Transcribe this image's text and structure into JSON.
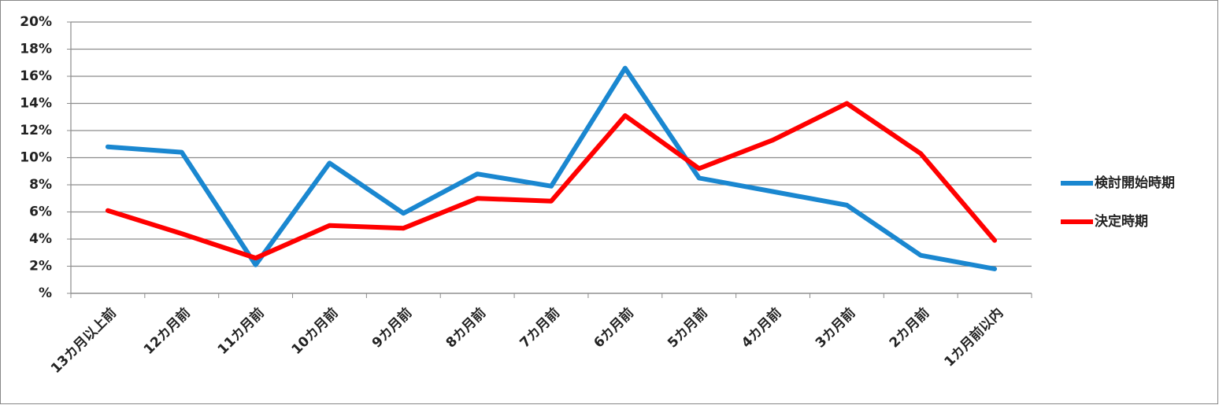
{
  "chart_data": {
    "type": "line",
    "categories": [
      "13カ月以上前",
      "12カ月前",
      "11カ月前",
      "10カ月前",
      "9カ月前",
      "8カ月前",
      "7カ月前",
      "6カ月前",
      "5カ月前",
      "4カ月前",
      "3カ月前",
      "2カ月前",
      "1カ月前以内"
    ],
    "series": [
      {
        "name": "検討開始時期",
        "color": "#1a87d0",
        "values": [
          10.8,
          10.4,
          2.1,
          9.6,
          5.9,
          8.8,
          7.9,
          16.6,
          8.5,
          7.5,
          6.5,
          2.8,
          1.8
        ]
      },
      {
        "name": "決定時期",
        "color": "#ff0000",
        "values": [
          6.1,
          4.4,
          2.6,
          5.0,
          4.8,
          7.0,
          6.8,
          13.1,
          9.2,
          11.3,
          14.0,
          10.3,
          3.9
        ]
      }
    ],
    "ylim": [
      0,
      20
    ],
    "yticks": [
      {
        "value": 0,
        "label": "%"
      },
      {
        "value": 2,
        "label": "2%"
      },
      {
        "value": 4,
        "label": "4%"
      },
      {
        "value": 6,
        "label": "6%"
      },
      {
        "value": 8,
        "label": "8%"
      },
      {
        "value": 10,
        "label": "10%"
      },
      {
        "value": 12,
        "label": "12%"
      },
      {
        "value": 14,
        "label": "14%"
      },
      {
        "value": 16,
        "label": "16%"
      },
      {
        "value": 18,
        "label": "18%"
      },
      {
        "value": 20,
        "label": "20%"
      }
    ],
    "grid": true
  }
}
